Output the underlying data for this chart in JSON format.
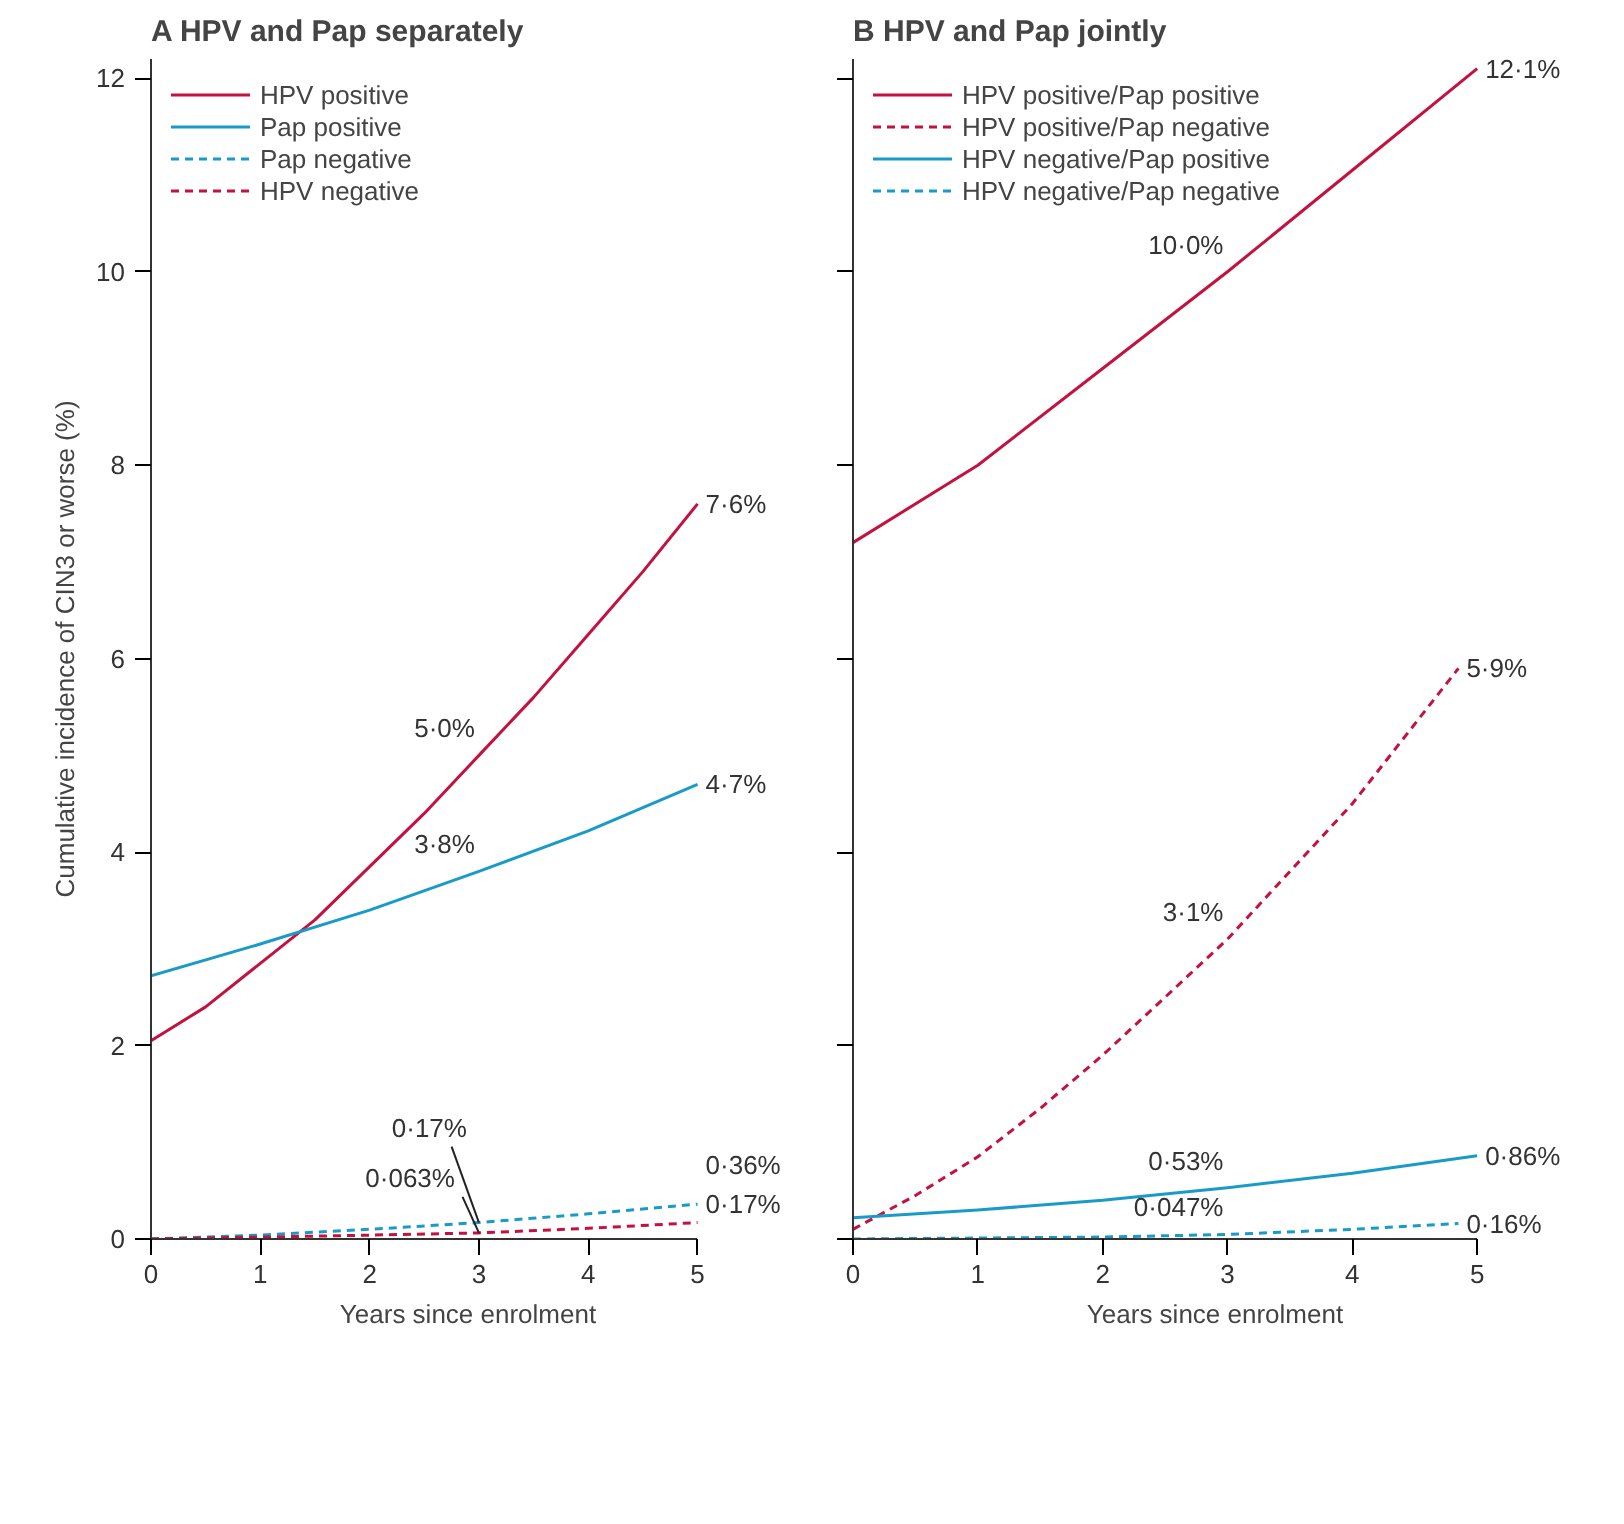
{
  "chart_data": [
    {
      "type": "line",
      "title": "A HPV and Pap separately",
      "xlabel": "Years since enrolment",
      "ylabel": "Cumulative incidence of CIN3 or worse (%)",
      "xlim": [
        0,
        5
      ],
      "xticks": [
        0,
        1,
        2,
        3,
        4,
        5
      ],
      "ylim": [
        0,
        12.2
      ],
      "yticks": [
        0,
        2,
        4,
        6,
        8,
        10,
        12
      ],
      "grid": false,
      "legend": "top left",
      "series": [
        {
          "name": "HPV positive",
          "color": "#c4123f",
          "line_style": "solid",
          "x": [
            0,
            0.5,
            1,
            1.5,
            2,
            2.5,
            3,
            3.5,
            4,
            4.5,
            5
          ],
          "values": [
            2.05,
            2.4,
            2.85,
            3.3,
            3.85,
            4.4,
            5.0,
            5.6,
            6.25,
            6.9,
            7.6
          ]
        },
        {
          "name": "Pap positive",
          "color": "#1a9bc7",
          "line_style": "solid",
          "x": [
            0,
            1,
            2,
            3,
            4,
            5
          ],
          "values": [
            2.72,
            3.05,
            3.4,
            3.8,
            4.22,
            4.7
          ]
        },
        {
          "name": "Pap negative",
          "color": "#1a9bc7",
          "line_style": "dashed",
          "x": [
            0,
            1,
            2,
            3,
            4,
            5
          ],
          "values": [
            0,
            0.04,
            0.1,
            0.17,
            0.26,
            0.36
          ]
        },
        {
          "name": "HPV negative",
          "color": "#c4123f",
          "line_style": "dashed",
          "x": [
            0,
            1,
            2,
            3,
            4,
            5
          ],
          "values": [
            0,
            0.02,
            0.04,
            0.063,
            0.11,
            0.17
          ]
        }
      ],
      "annotations": [
        {
          "text": "5·0%",
          "x": 3,
          "y": 5.0
        },
        {
          "text": "3·8%",
          "x": 3,
          "y": 3.8
        },
        {
          "text": "0·17%",
          "x": 3,
          "y": 0.17
        },
        {
          "text": "0·063%",
          "x": 3,
          "y": 0.063
        },
        {
          "text": "7·6%",
          "x": 5,
          "y": 7.6
        },
        {
          "text": "4·7%",
          "x": 5,
          "y": 4.7
        },
        {
          "text": "0·36%",
          "x": 5,
          "y": 0.36
        },
        {
          "text": "0·17%",
          "x": 5,
          "y": 0.17
        }
      ]
    },
    {
      "type": "line",
      "title": "B HPV and Pap jointly",
      "xlabel": "Years since enrolment",
      "xlim": [
        0,
        5
      ],
      "xticks": [
        0,
        1,
        2,
        3,
        4,
        5
      ],
      "ylim": [
        0,
        12.2
      ],
      "yticks": [
        0,
        2,
        4,
        6,
        8,
        10,
        12
      ],
      "tick_labels": "x",
      "grid": false,
      "legend": "top left",
      "series": [
        {
          "name": "HPV positive/Pap positive",
          "color": "#c4123f",
          "line_style": "solid",
          "x": [
            0,
            1,
            2,
            3,
            4,
            5
          ],
          "values": [
            7.2,
            8.0,
            9.0,
            10.0,
            11.05,
            12.1
          ]
        },
        {
          "name": "HPV positive/Pap negative",
          "color": "#c4123f",
          "line_style": "dashed",
          "x": [
            0,
            0.5,
            1,
            1.5,
            2,
            2.5,
            3,
            3.5,
            4,
            4.85
          ],
          "values": [
            0.1,
            0.45,
            0.85,
            1.35,
            1.9,
            2.5,
            3.1,
            3.8,
            4.5,
            5.9
          ]
        },
        {
          "name": "HPV negative/Pap positive",
          "color": "#1a9bc7",
          "line_style": "solid",
          "x": [
            0,
            1,
            2,
            3,
            4,
            5
          ],
          "values": [
            0.22,
            0.3,
            0.4,
            0.53,
            0.68,
            0.86
          ]
        },
        {
          "name": "HPV negative/Pap negative",
          "color": "#1a9bc7",
          "line_style": "dashed",
          "x": [
            0,
            1,
            2,
            3,
            4,
            4.85
          ],
          "values": [
            0,
            0.01,
            0.02,
            0.047,
            0.1,
            0.16
          ]
        }
      ],
      "annotations": [
        {
          "text": "10·0%",
          "x": 3,
          "y": 10.0
        },
        {
          "text": "3·1%",
          "x": 3,
          "y": 3.1
        },
        {
          "text": "0·53%",
          "x": 3,
          "y": 0.53
        },
        {
          "text": "0·047%",
          "x": 3,
          "y": 0.047
        },
        {
          "text": "12·1%",
          "x": 5,
          "y": 12.1
        },
        {
          "text": "5·9%",
          "x": 4.85,
          "y": 5.9
        },
        {
          "text": "0·86%",
          "x": 5,
          "y": 0.86
        },
        {
          "text": "0·16%",
          "x": 4.85,
          "y": 0.16
        }
      ]
    }
  ]
}
